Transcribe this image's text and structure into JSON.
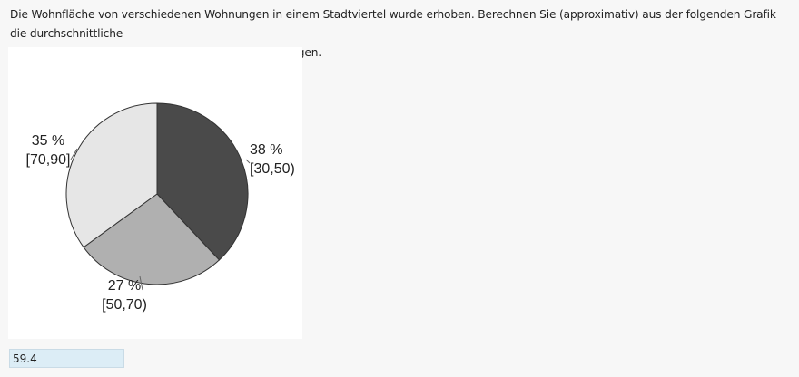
{
  "question": {
    "line1": "Die Wohnfläche von verschiedenen Wohnungen in einem Stadtviertel wurde erhoben. Berechnen Sie (approximativ) aus der folgenden Grafik die durchschnittliche",
    "line2": "Wohnfläche in Quadratmeter der erhobenen Wohnungen."
  },
  "chart_data": {
    "type": "pie",
    "slices": [
      {
        "percent_label": "38 %",
        "interval": "[30,50)",
        "value": 38,
        "color": "#4a4a4a"
      },
      {
        "percent_label": "27 %",
        "interval": "[50,70)",
        "value": 27,
        "color": "#b0b0b0"
      },
      {
        "percent_label": "35 %",
        "interval": "[70,90]",
        "value": 35,
        "color": "#e6e6e6"
      }
    ],
    "stroke_color": "#333333"
  },
  "answer": {
    "value": "59.4"
  }
}
